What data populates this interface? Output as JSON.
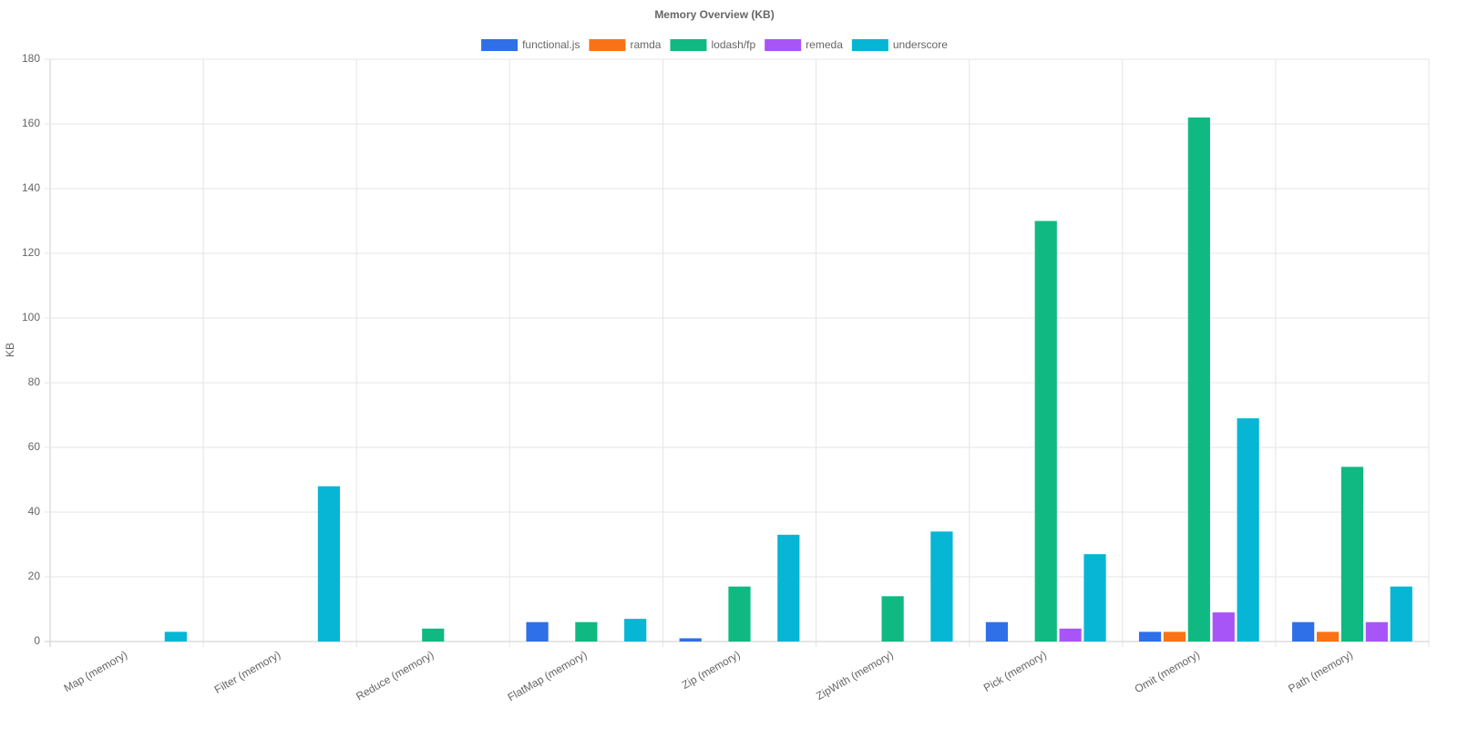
{
  "chart_data": {
    "type": "bar",
    "title": "Memory Overview (KB)",
    "y_label": "KB",
    "categories": [
      "Map (memory)",
      "Filter (memory)",
      "Reduce (memory)",
      "FlatMap (memory)",
      "Zip (memory)",
      "ZipWith (memory)",
      "Pick (memory)",
      "Omit (memory)",
      "Path (memory)"
    ],
    "series": [
      {
        "name": "functional.js",
        "color": "#2f6fe8",
        "values": [
          0,
          0,
          0,
          6,
          1,
          0,
          6,
          3,
          6
        ]
      },
      {
        "name": "ramda",
        "color": "#f97316",
        "values": [
          0,
          0,
          0,
          0,
          0,
          0,
          0,
          3,
          3
        ]
      },
      {
        "name": "lodash/fp",
        "color": "#10b981",
        "values": [
          0,
          0,
          4,
          6,
          17,
          14,
          130,
          162,
          54
        ]
      },
      {
        "name": "remeda",
        "color": "#a855f7",
        "values": [
          0,
          0,
          0,
          0,
          0,
          0,
          4,
          9,
          6
        ]
      },
      {
        "name": "underscore",
        "color": "#06b6d4",
        "values": [
          3,
          48,
          0,
          7,
          33,
          34,
          27,
          69,
          17
        ]
      }
    ],
    "ylim": [
      0,
      180
    ],
    "yticks": [
      0,
      20,
      40,
      60,
      80,
      100,
      120,
      140,
      160,
      180
    ],
    "grid": true
  }
}
